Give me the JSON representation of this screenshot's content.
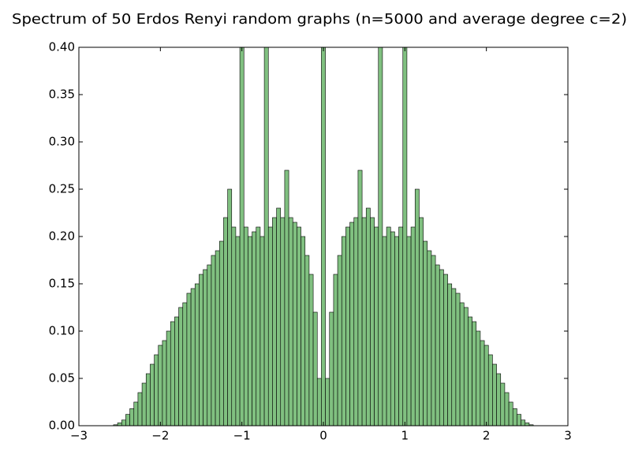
{
  "chart_data": {
    "type": "histogram",
    "title": "Spectrum of 50 Erdos Renyi random graphs (n=5000 and average degree c=2)",
    "bins": [
      -2.975,
      -2.925,
      -2.875,
      -2.825,
      -2.775,
      -2.725,
      -2.675,
      -2.625,
      -2.575,
      -2.525,
      -2.475,
      -2.425,
      -2.375,
      -2.325,
      -2.275,
      -2.225,
      -2.175,
      -2.125,
      -2.075,
      -2.025,
      -1.975,
      -1.925,
      -1.875,
      -1.825,
      -1.775,
      -1.725,
      -1.675,
      -1.625,
      -1.575,
      -1.525,
      -1.475,
      -1.425,
      -1.375,
      -1.325,
      -1.275,
      -1.225,
      -1.175,
      -1.125,
      -1.075,
      -1.025,
      -0.975,
      -0.925,
      -0.875,
      -0.825,
      -0.775,
      -0.725,
      -0.675,
      -0.625,
      -0.575,
      -0.525,
      -0.475,
      -0.425,
      -0.375,
      -0.325,
      -0.275,
      -0.225,
      -0.175,
      -0.125,
      -0.075,
      -0.025,
      0.025,
      0.075,
      0.125,
      0.175,
      0.225,
      0.275,
      0.325,
      0.375,
      0.425,
      0.475,
      0.525,
      0.575,
      0.625,
      0.675,
      0.725,
      0.775,
      0.825,
      0.875,
      0.925,
      0.975,
      1.025,
      1.075,
      1.125,
      1.175,
      1.225,
      1.275,
      1.325,
      1.375,
      1.425,
      1.475,
      1.525,
      1.575,
      1.625,
      1.675,
      1.725,
      1.775,
      1.825,
      1.875,
      1.925,
      1.975,
      2.025,
      2.075,
      2.125,
      2.175,
      2.225,
      2.275,
      2.325,
      2.375,
      2.425,
      2.475,
      2.525,
      2.575,
      2.625,
      2.675,
      2.725,
      2.775,
      2.825,
      2.875,
      2.925,
      2.975
    ],
    "values": [
      0,
      0,
      0,
      0,
      0,
      0,
      0,
      0,
      0.001,
      0.003,
      0.006,
      0.012,
      0.018,
      0.025,
      0.035,
      0.045,
      0.055,
      0.065,
      0.075,
      0.085,
      0.09,
      0.1,
      0.11,
      0.115,
      0.125,
      0.13,
      0.14,
      0.145,
      0.15,
      0.16,
      0.165,
      0.17,
      0.18,
      0.185,
      0.195,
      0.22,
      0.25,
      0.21,
      0.2,
      0.4,
      0.21,
      0.2,
      0.205,
      0.21,
      0.2,
      0.4,
      0.21,
      0.22,
      0.23,
      0.22,
      0.27,
      0.22,
      0.215,
      0.21,
      0.2,
      0.18,
      0.16,
      0.12,
      0.05,
      0.4,
      0.05,
      0.12,
      0.16,
      0.18,
      0.2,
      0.21,
      0.215,
      0.22,
      0.27,
      0.22,
      0.23,
      0.22,
      0.21,
      0.4,
      0.2,
      0.21,
      0.205,
      0.2,
      0.21,
      0.4,
      0.2,
      0.21,
      0.25,
      0.22,
      0.195,
      0.185,
      0.18,
      0.17,
      0.165,
      0.16,
      0.15,
      0.145,
      0.14,
      0.13,
      0.125,
      0.115,
      0.11,
      0.1,
      0.09,
      0.085,
      0.075,
      0.065,
      0.055,
      0.045,
      0.035,
      0.025,
      0.018,
      0.012,
      0.006,
      0.003,
      0.001,
      0,
      0,
      0,
      0,
      0,
      0,
      0,
      0
    ],
    "color": "#80c080",
    "xlim": [
      -3,
      3
    ],
    "xticks": [
      {
        "value": -3,
        "label": "−3"
      },
      {
        "value": -2,
        "label": "−2"
      },
      {
        "value": -1,
        "label": "−1"
      },
      0,
      1,
      2,
      3
    ],
    "ylim": [
      0,
      0.4
    ],
    "yticks": [
      {
        "value": 0,
        "label": "0.00"
      },
      {
        "value": 0.05,
        "label": "0.05"
      },
      {
        "value": 0.1,
        "label": "0.10"
      },
      {
        "value": 0.15,
        "label": "0.15"
      },
      {
        "value": 0.2,
        "label": "0.20"
      },
      {
        "value": 0.25,
        "label": "0.25"
      },
      {
        "value": 0.3,
        "label": "0.30"
      },
      {
        "value": 0.35,
        "label": "0.35"
      },
      {
        "value": 0.4,
        "label": "0.40"
      }
    ]
  }
}
